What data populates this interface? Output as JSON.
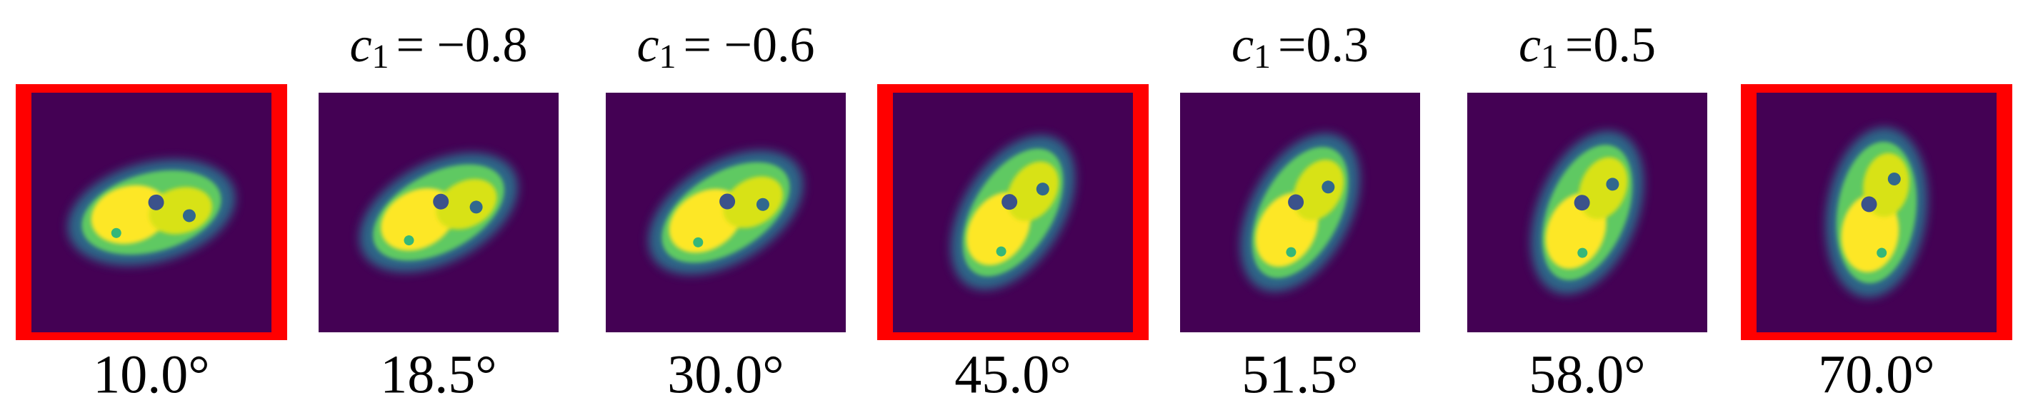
{
  "panels": [
    {
      "angle_label": "10.0°",
      "highlighted": true
    },
    {
      "angle_label": "18.5°",
      "highlighted": false,
      "top_label": {
        "variable": "c",
        "subscript": "1",
        "rest": "= −0.8"
      }
    },
    {
      "angle_label": "30.0°",
      "highlighted": false,
      "top_label": {
        "variable": "c",
        "subscript": "1",
        "rest": "= −0.6"
      }
    },
    {
      "angle_label": "45.0°",
      "highlighted": true
    },
    {
      "angle_label": "51.5°",
      "highlighted": false,
      "top_label": {
        "variable": "c",
        "subscript": "1",
        "rest": "=0.3"
      }
    },
    {
      "angle_label": "58.0°",
      "highlighted": false,
      "top_label": {
        "variable": "c",
        "subscript": "1",
        "rest": "=0.5"
      }
    },
    {
      "angle_label": "70.0°",
      "highlighted": true
    }
  ]
}
